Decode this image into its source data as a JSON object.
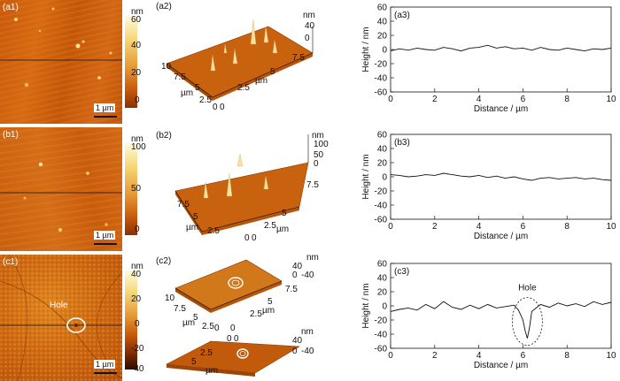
{
  "figure": {
    "rows": [
      {
        "afm_label": "(a1)",
        "scale_label": "1 µm",
        "colorbar": {
          "unit": "nm",
          "ticks": [
            "60",
            "40",
            "20",
            "0"
          ]
        },
        "view3d": {
          "label": "(a2)",
          "z_unit": "nm",
          "z_ticks": [
            "40",
            "0"
          ],
          "axis_left": [
            "10",
            "7.5",
            "5",
            "2.5",
            "0"
          ],
          "axis_right": [
            "0",
            "2.5",
            "5",
            "7.5"
          ],
          "axis_unit": "µm"
        }
      },
      {
        "afm_label": "(b1)",
        "scale_label": "1 µm",
        "colorbar": {
          "unit": "nm",
          "ticks": [
            "100",
            "50",
            "0"
          ]
        },
        "view3d": {
          "label": "(b2)",
          "z_unit": "nm",
          "z_ticks": [
            "100",
            "50",
            "0"
          ],
          "axis_left": [
            "7.5",
            "5",
            "2.5",
            "0"
          ],
          "axis_right": [
            "0",
            "2.5",
            "5",
            "7.5"
          ],
          "axis_unit": "µm"
        }
      },
      {
        "afm_label": "(c1)",
        "scale_label": "1 µm",
        "hole_label": "Hole",
        "colorbar": {
          "unit": "nm",
          "ticks": [
            "40",
            "20",
            "0",
            "-20",
            "-40"
          ]
        },
        "view3d": {
          "label": "(c2)",
          "z_unit": "nm",
          "z_ticks": [
            "40",
            "0",
            "-40"
          ],
          "axis_left": [
            "10",
            "7.5",
            "5",
            "2.5",
            "0"
          ],
          "axis_right": [
            "0",
            "2.5",
            "5",
            "7.5"
          ],
          "axis_unit": "µm",
          "lower_z_unit": "nm",
          "lower_z_ticks": [
            "40",
            "0",
            "-40"
          ],
          "lower_axis": [
            "5",
            "2.5",
            "0",
            "0"
          ]
        }
      }
    ]
  },
  "chart_data": [
    {
      "type": "line",
      "label": "(a3)",
      "xlabel": "Distance / µm",
      "ylabel": "Height / nm",
      "xlim": [
        0,
        10
      ],
      "ylim": [
        -60,
        60
      ],
      "x_ticks": [
        0,
        2,
        4,
        6,
        8,
        10
      ],
      "y_ticks": [
        60,
        40,
        20,
        0,
        -20,
        -40,
        -60
      ],
      "x": [
        0,
        0.4,
        0.8,
        1.2,
        1.6,
        2.0,
        2.4,
        2.8,
        3.2,
        3.6,
        4.0,
        4.4,
        4.8,
        5.2,
        5.6,
        6.0,
        6.4,
        6.8,
        7.2,
        7.6,
        8.0,
        8.4,
        8.8,
        9.2,
        9.6,
        10
      ],
      "y": [
        -2,
        1,
        -1,
        2,
        0,
        -1,
        3,
        1,
        -2,
        2,
        3,
        6,
        2,
        4,
        1,
        2,
        -1,
        3,
        0,
        -1,
        2,
        0,
        -2,
        1,
        0,
        2
      ]
    },
    {
      "type": "line",
      "label": "(b3)",
      "xlabel": "Distance / µm",
      "ylabel": "Height / nm",
      "xlim": [
        0,
        10
      ],
      "ylim": [
        -60,
        60
      ],
      "x_ticks": [
        0,
        2,
        4,
        6,
        8,
        10
      ],
      "y_ticks": [
        60,
        40,
        20,
        0,
        -20,
        -40,
        -60
      ],
      "x": [
        0,
        0.4,
        0.8,
        1.2,
        1.6,
        2.0,
        2.4,
        2.8,
        3.2,
        3.6,
        4.0,
        4.4,
        4.8,
        5.2,
        5.6,
        6.0,
        6.4,
        6.8,
        7.2,
        7.6,
        8.0,
        8.4,
        8.8,
        9.2,
        9.6,
        10
      ],
      "y": [
        3,
        2,
        0,
        1,
        3,
        2,
        5,
        3,
        1,
        0,
        2,
        -1,
        1,
        -2,
        0,
        -3,
        -5,
        -2,
        -1,
        -3,
        -2,
        -1,
        -3,
        -2,
        -4,
        -5
      ]
    },
    {
      "type": "line",
      "label": "(c3)",
      "annotation": "Hole",
      "xlabel": "Distance / µm",
      "ylabel": "Height / nm",
      "xlim": [
        0,
        10
      ],
      "ylim": [
        -60,
        60
      ],
      "x_ticks": [
        0,
        2,
        4,
        6,
        8,
        10
      ],
      "y_ticks": [
        60,
        40,
        20,
        0,
        -20,
        -40,
        -60
      ],
      "x": [
        0,
        0.4,
        0.8,
        1.2,
        1.6,
        2.0,
        2.4,
        2.8,
        3.2,
        3.6,
        4.0,
        4.4,
        4.8,
        5.2,
        5.6,
        5.8,
        6.0,
        6.1,
        6.2,
        6.3,
        6.4,
        6.6,
        6.8,
        7.2,
        7.6,
        8.0,
        8.4,
        8.8,
        9.2,
        9.6,
        10
      ],
      "y": [
        -8,
        -5,
        -3,
        -6,
        2,
        -4,
        6,
        -2,
        -5,
        1,
        -4,
        2,
        -3,
        -1,
        1,
        -6,
        -20,
        -35,
        -46,
        -30,
        -8,
        -3,
        2,
        -2,
        4,
        0,
        3,
        -1,
        6,
        2,
        5
      ]
    }
  ]
}
